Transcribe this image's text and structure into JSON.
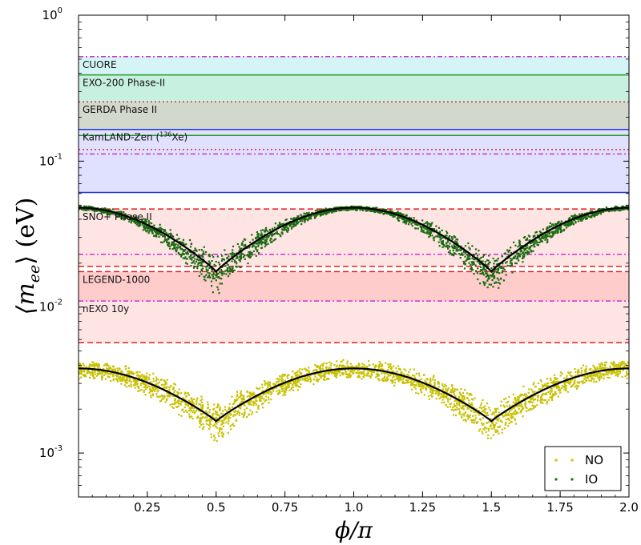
{
  "chart_data": {
    "type": "scatter",
    "xlabel": "ϕ/π",
    "ylabel": "⟨m_ee⟩ (eV)",
    "xlim": [
      0.0,
      2.0
    ],
    "ylim": [
      0.0005,
      1.0
    ],
    "yscale": "log",
    "x_ticks": [
      "0.25",
      "0.50",
      "0.75",
      "1.00",
      "1.25",
      "1.50",
      "1.75",
      "2.00"
    ],
    "x_tick_display": [
      "0.25",
      "0.5",
      "0.75",
      "1.0",
      "1.25",
      "1.5",
      "1.75",
      "2.0"
    ],
    "y_ticks": [
      {
        "value": 0.001,
        "base": "10",
        "exp": "-3"
      },
      {
        "value": 0.01,
        "base": "10",
        "exp": "-2"
      },
      {
        "value": 0.1,
        "base": "10",
        "exp": "-1"
      },
      {
        "value": 1.0,
        "base": "10",
        "exp": "0"
      }
    ],
    "grid": false,
    "legend_position": "bottom-right",
    "series": [
      {
        "name": "NO",
        "color": "#c8c000",
        "marker": "dot",
        "center_curve": {
          "x": [
            0.0,
            0.5,
            1.0,
            1.5,
            2.0
          ],
          "y": [
            0.0038,
            0.00165,
            0.0038,
            0.00165,
            0.0038
          ]
        },
        "scatter_upper": {
          "x": [
            0.0,
            0.5,
            1.0,
            1.5,
            2.0
          ],
          "y": [
            0.0044,
            0.0022,
            0.0044,
            0.0022,
            0.0044
          ]
        },
        "scatter_lower": {
          "x": [
            0.0,
            0.5,
            1.0,
            1.5,
            2.0
          ],
          "y": [
            0.0032,
            0.00112,
            0.0032,
            0.00112,
            0.0032
          ]
        }
      },
      {
        "name": "IO",
        "color": "#1d6b12",
        "marker": "dot",
        "center_curve": {
          "x": [
            0.0,
            0.5,
            1.0,
            1.5,
            2.0
          ],
          "y": [
            0.048,
            0.0175,
            0.048,
            0.0175,
            0.048
          ]
        },
        "scatter_upper": {
          "x": [
            0.0,
            0.5,
            1.0,
            1.5,
            2.0
          ],
          "y": [
            0.0495,
            0.023,
            0.0495,
            0.023,
            0.0495
          ]
        },
        "scatter_lower": {
          "x": [
            0.0,
            0.5,
            1.0,
            1.5,
            2.0
          ],
          "y": [
            0.046,
            0.0113,
            0.046,
            0.0113,
            0.046
          ]
        }
      }
    ],
    "bands": [
      {
        "label": "CUORE",
        "lower": 0.39,
        "upper": 0.52,
        "fill": "#d4f4f6",
        "line_color": "#cc33cc",
        "line_style": "dashdot"
      },
      {
        "label": "EXO-200 Phase-II",
        "lower": 0.255,
        "upper": 0.39,
        "fill": "#c8f0e0",
        "line_color": "#229922",
        "line_style": "solid"
      },
      {
        "label": "GERDA Phase II",
        "lower": 0.15,
        "upper": 0.255,
        "fill": "#d2d8cc",
        "line_color": "#cc3333",
        "line_style": "dotted"
      },
      {
        "label": "KamLAND-Zen (",
        "label_sup": "136",
        "label_after": "Xe)",
        "lower": 0.061,
        "upper": 0.165,
        "fill": "#e0e0ff",
        "line_color": "#2233dd",
        "line_style": "solid"
      },
      {
        "label": "SNO+ Phase II",
        "lower": 0.019,
        "upper": 0.047,
        "fill": "#ffe4e4",
        "line_color": "#cc33cc",
        "line_style": "dashdot"
      },
      {
        "label": "LEGEND-1000",
        "lower": 0.011,
        "upper": 0.0175,
        "fill": "#ffcccc",
        "line_color": "#cc33cc",
        "line_style": "dashdot"
      },
      {
        "label": "nEXO 10y",
        "lower": 0.0057,
        "upper": 0.011,
        "fill": "#ffe4e4",
        "line_color": "#dd2222",
        "line_style": "dashed"
      }
    ],
    "hlines": [
      {
        "y": 0.52,
        "color": "#cc33cc",
        "style": "dashdot"
      },
      {
        "y": 0.39,
        "color": "#229922",
        "style": "solid"
      },
      {
        "y": 0.255,
        "color": "#cc3333",
        "style": "dotted"
      },
      {
        "y": 0.165,
        "color": "#2233dd",
        "style": "solid"
      },
      {
        "y": 0.15,
        "color": "#229922",
        "style": "solid"
      },
      {
        "y": 0.12,
        "color": "#cc3333",
        "style": "dotted"
      },
      {
        "y": 0.112,
        "color": "#cc33cc",
        "style": "dashdot"
      },
      {
        "y": 0.061,
        "color": "#2233dd",
        "style": "solid"
      },
      {
        "y": 0.047,
        "color": "#dd2222",
        "style": "dashed"
      },
      {
        "y": 0.023,
        "color": "#cc33cc",
        "style": "dashdot"
      },
      {
        "y": 0.019,
        "color": "#dd2222",
        "style": "dashed"
      },
      {
        "y": 0.0175,
        "color": "#dd2222",
        "style": "dashed"
      },
      {
        "y": 0.011,
        "color": "#cc33cc",
        "style": "dashdot"
      },
      {
        "y": 0.0057,
        "color": "#dd2222",
        "style": "dashed"
      }
    ]
  }
}
